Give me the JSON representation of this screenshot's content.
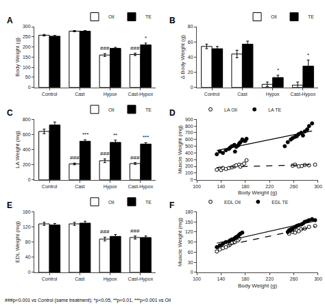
{
  "chart_data": [
    {
      "type": "bar",
      "title": "A",
      "ylabel": "Body Weight (g)",
      "categories": [
        "Control",
        "Cast",
        "Hypox",
        "Cast-Hypox"
      ],
      "series": [
        {
          "name": "Oil",
          "color": "white",
          "values": [
            258,
            278,
            160,
            163
          ],
          "errors": [
            4,
            3,
            7,
            6
          ]
        },
        {
          "name": "TE",
          "color": "black",
          "values": [
            253,
            278,
            193,
            210
          ],
          "errors": [
            4,
            3,
            5,
            9
          ]
        }
      ],
      "ylim": [
        0,
        300
      ],
      "yticks": [
        0,
        50,
        100,
        150,
        200,
        250,
        300
      ],
      "annotations": [
        {
          "series": "Oil",
          "category": "Hypox",
          "text": "###"
        },
        {
          "series": "Oil",
          "category": "Cast-Hypox",
          "text": "###"
        },
        {
          "series": "TE",
          "category": "Cast-Hypox",
          "text": "*"
        }
      ],
      "legend": "upper right",
      "grid": false
    },
    {
      "type": "bar",
      "title": "B",
      "ylabel": "Δ Body Weight (g)",
      "categories": [
        "Control",
        "Cast",
        "Hypox",
        "Cast-Hypox"
      ],
      "series": [
        {
          "name": "Oil",
          "color": "white",
          "values": [
            54,
            44,
            4,
            3
          ],
          "errors": [
            3,
            5,
            3,
            4
          ]
        },
        {
          "name": "TE",
          "color": "black",
          "values": [
            51,
            57,
            13,
            28
          ],
          "errors": [
            3,
            4,
            3,
            8
          ]
        }
      ],
      "ylim": [
        0,
        80
      ],
      "yticks": [
        0,
        20,
        40,
        60,
        80
      ],
      "annotations": [
        {
          "series": "TE",
          "category": "Hypox",
          "text": "*"
        },
        {
          "series": "TE",
          "category": "Cast-Hypox",
          "text": "*"
        }
      ],
      "legend": "upper right",
      "grid": false
    },
    {
      "type": "bar",
      "title": "C",
      "ylabel": "LA Weight (mg)",
      "categories": [
        "Control",
        "Cast",
        "Hypox",
        "Cast-Hypox"
      ],
      "series": [
        {
          "name": "Oil",
          "color": "white",
          "values": [
            640,
            210,
            252,
            215
          ],
          "errors": [
            30,
            12,
            25,
            12
          ]
        },
        {
          "name": "TE",
          "color": "black",
          "values": [
            725,
            510,
            495,
            473
          ],
          "errors": [
            40,
            20,
            30,
            18
          ]
        }
      ],
      "ylim": [
        0,
        800
      ],
      "yticks": [
        0,
        200,
        400,
        600,
        800
      ],
      "annotations": [
        {
          "series": "Oil",
          "category": "Cast",
          "text": "###"
        },
        {
          "series": "Oil",
          "category": "Hypox",
          "text": "###"
        },
        {
          "series": "Oil",
          "category": "Cast-Hypox",
          "text": "###"
        },
        {
          "series": "TE",
          "category": "Cast",
          "text": "***"
        },
        {
          "series": "TE",
          "category": "Hypox",
          "text": "**"
        },
        {
          "series": "TE",
          "category": "Cast-Hypox",
          "text": "***"
        }
      ],
      "legend": "upper right",
      "grid": false
    },
    {
      "type": "scatter",
      "title": "D",
      "xlabel": "Body Weight (g)",
      "ylabel": "Muscle Weight (mg)",
      "xlim": [
        100,
        300
      ],
      "ylim": [
        0,
        900
      ],
      "xticks": [
        100,
        140,
        180,
        220,
        260,
        300
      ],
      "yticks": [
        0,
        100,
        200,
        300,
        400,
        500,
        600,
        700,
        800,
        900
      ],
      "series": [
        {
          "name": "LA Oil",
          "type": "scatter",
          "marker": "open circle",
          "color": "black",
          "x": [
            133,
            138,
            140,
            143,
            148,
            153,
            158,
            162,
            165,
            170,
            172,
            175,
            178,
            182,
            258,
            262,
            268,
            273,
            278,
            285,
            295
          ],
          "values": [
            150,
            165,
            145,
            175,
            160,
            175,
            185,
            200,
            215,
            225,
            195,
            220,
            240,
            290,
            210,
            225,
            200,
            205,
            220,
            215,
            225
          ]
        },
        {
          "name": "LA TE",
          "type": "scatter",
          "marker": "circle",
          "color": "black",
          "x": [
            133,
            138,
            143,
            148,
            153,
            155,
            158,
            162,
            163,
            165,
            168,
            170,
            172,
            175,
            178,
            180,
            182,
            245,
            250,
            255,
            258,
            262,
            265,
            268,
            272,
            275,
            278,
            282,
            285,
            290
          ],
          "values": [
            380,
            420,
            400,
            440,
            460,
            480,
            500,
            520,
            420,
            490,
            510,
            540,
            560,
            600,
            580,
            580,
            610,
            500,
            560,
            600,
            620,
            640,
            650,
            680,
            700,
            660,
            720,
            750,
            800,
            840
          ]
        },
        {
          "type": "line",
          "line_style": "dashed",
          "color": "black",
          "x": [
            133,
            295
          ],
          "values": [
            184.88,
            228.01
          ]
        },
        {
          "type": "line",
          "line_style": "solid",
          "color": "black",
          "x": [
            133,
            290
          ],
          "values": [
            435.91,
            725.83
          ]
        }
      ],
      "legend": "upper left",
      "grid": false
    },
    {
      "type": "bar",
      "title": "E",
      "ylabel": "EDL Weight (mg)",
      "categories": [
        "Control",
        "Cast",
        "Hypox",
        "Cast-Hypox"
      ],
      "series": [
        {
          "name": "Oil",
          "color": "white",
          "values": [
            128,
            128,
            88,
            92
          ],
          "errors": [
            4,
            4,
            5,
            4
          ]
        },
        {
          "name": "TE",
          "color": "black",
          "values": [
            125,
            130,
            95,
            92
          ],
          "errors": [
            4,
            5,
            5,
            4
          ]
        }
      ],
      "ylim": [
        0,
        160
      ],
      "yticks": [
        0,
        40,
        80,
        120,
        160
      ],
      "annotations": [
        {
          "series": "Oil",
          "category": "Hypox",
          "text": "###"
        },
        {
          "series": "Oil",
          "category": "Cast-Hypox",
          "text": "###"
        }
      ],
      "legend": "upper right",
      "grid": false
    },
    {
      "type": "scatter",
      "title": "F",
      "xlabel": "Body Weight (g)",
      "ylabel": "Muscle Weight (mg)",
      "xlim": [
        100,
        300
      ],
      "ylim": [
        0,
        180
      ],
      "xticks": [
        100,
        140,
        180,
        220,
        260,
        300
      ],
      "yticks": [
        0,
        30,
        60,
        90,
        120,
        150,
        180
      ],
      "series": [
        {
          "name": "EDL Oil",
          "type": "scatter",
          "marker": "open circle",
          "color": "black",
          "x": [
            133,
            138,
            143,
            148,
            153,
            155,
            158,
            162,
            163,
            165,
            168,
            170,
            252,
            258,
            262,
            265,
            268,
            272,
            278,
            285,
            295
          ],
          "values": [
            62,
            68,
            72,
            75,
            80,
            83,
            88,
            92,
            90,
            95,
            95,
            100,
            115,
            120,
            118,
            125,
            122,
            128,
            130,
            135,
            138
          ]
        },
        {
          "name": "EDL TE",
          "type": "scatter",
          "marker": "circle",
          "color": "black",
          "x": [
            133,
            138,
            143,
            148,
            153,
            155,
            158,
            162,
            163,
            165,
            168,
            170,
            172,
            175,
            250,
            252,
            255,
            258,
            262,
            265,
            268,
            272,
            275,
            278,
            282,
            285,
            290,
            295
          ],
          "values": [
            75,
            80,
            85,
            90,
            92,
            95,
            98,
            100,
            102,
            105,
            108,
            112,
            115,
            118,
            120,
            125,
            128,
            130,
            135,
            138,
            140,
            142,
            145,
            150,
            152,
            155,
            158,
            155
          ]
        },
        {
          "type": "line",
          "line_style": "dashed",
          "color": "black",
          "x": [
            133,
            295
          ],
          "values": [
            74.15,
            136.2
          ]
        },
        {
          "type": "line",
          "line_style": "solid",
          "color": "black",
          "x": [
            133,
            295
          ],
          "values": [
            86.82,
            152.38
          ]
        }
      ],
      "legend": "upper left",
      "grid": false
    }
  ],
  "annotations": [
    "###p<0.001 vs Control (same treatment); *p<0.05, **p<0.01, ***p<0.001 vs Oil"
  ]
}
